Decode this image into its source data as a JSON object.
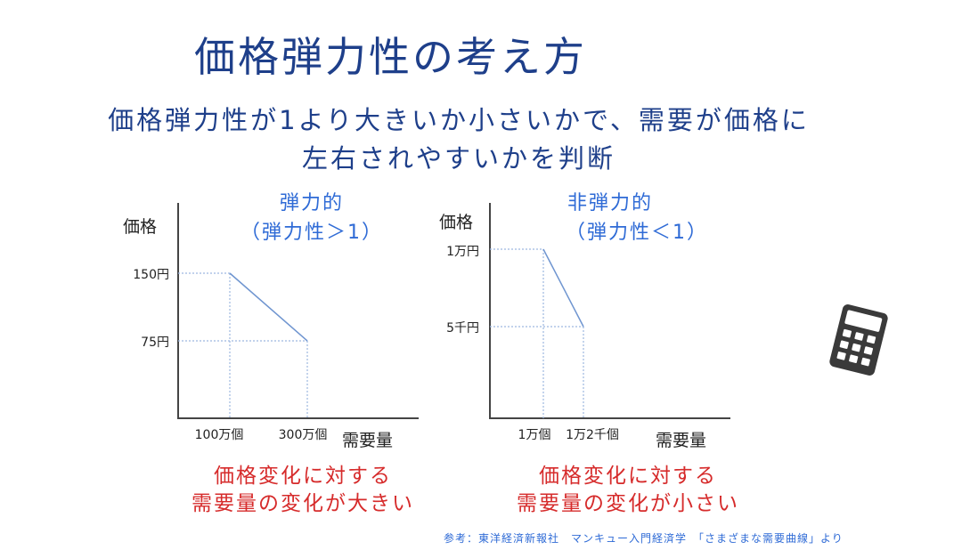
{
  "title": "価格弾力性の考え方",
  "subtitle": [
    "価格弾力性が1より大きいか小さいかで、需要が価格に",
    "左右されやすいかを判断"
  ],
  "source": "参考：東洋経済新報社　マンキュー入門経済学　「さまざまな需要曲線」より",
  "icon": "calculator-icon",
  "colors": {
    "title": "#1e3f8a",
    "chart_title": "#2f6bd6",
    "caption": "#d62b2b",
    "axis": "#444444",
    "guide": "#9db8e0"
  },
  "chart_data": [
    {
      "type": "line",
      "title": [
        "弾力的",
        "（弾力性＞1）"
      ],
      "ylabel": "価格",
      "xlabel": "需要量",
      "x_ticks": [
        "100万個",
        "300万個"
      ],
      "y_ticks": [
        "150円",
        "75円"
      ],
      "points": [
        {
          "x": "100万個",
          "y": "150円"
        },
        {
          "x": "300万個",
          "y": "75円"
        }
      ],
      "caption": [
        "価格変化に対する",
        "需要量の変化が大きい"
      ]
    },
    {
      "type": "line",
      "title": [
        "非弾力的",
        "（弾力性＜1）"
      ],
      "ylabel": "価格",
      "xlabel": "需要量",
      "x_ticks": [
        "1万個",
        "1万2千個"
      ],
      "y_ticks": [
        "1万円",
        "5千円"
      ],
      "points": [
        {
          "x": "1万個",
          "y": "1万円"
        },
        {
          "x": "1万2千個",
          "y": "5千円"
        }
      ],
      "caption": [
        "価格変化に対する",
        "需要量の変化が小さい"
      ]
    }
  ]
}
